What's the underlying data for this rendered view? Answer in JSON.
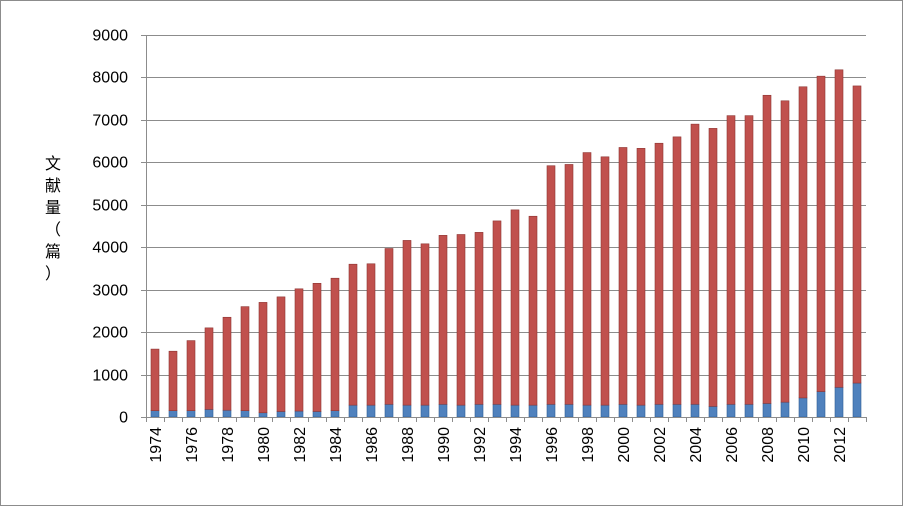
{
  "chart_data": {
    "type": "bar",
    "stacked": true,
    "ylabel": "文献量（篇）",
    "ylim": [
      0,
      9000
    ],
    "yticks": [
      0,
      1000,
      2000,
      3000,
      4000,
      5000,
      6000,
      7000,
      8000,
      9000
    ],
    "grid": true,
    "legend": "none",
    "x": [
      1974,
      1975,
      1976,
      1977,
      1978,
      1979,
      1980,
      1981,
      1982,
      1983,
      1984,
      1985,
      1986,
      1987,
      1988,
      1989,
      1990,
      1991,
      1992,
      1993,
      1994,
      1995,
      1996,
      1997,
      1998,
      1999,
      2000,
      2001,
      2002,
      2003,
      2004,
      2005,
      2006,
      2007,
      2008,
      2009,
      2010,
      2011,
      2012,
      2013
    ],
    "xtick_labels": [
      "1974",
      "1976",
      "1978",
      "1980",
      "1982",
      "1984",
      "1986",
      "1988",
      "1990",
      "1992",
      "1994",
      "1996",
      "1998",
      "2000",
      "2002",
      "2004",
      "2006",
      "2008",
      "2010",
      "2012"
    ],
    "series": [
      {
        "color": "#4f81bd",
        "values": [
          150,
          150,
          150,
          180,
          160,
          150,
          100,
          130,
          140,
          130,
          150,
          280,
          280,
          300,
          280,
          280,
          300,
          280,
          300,
          300,
          280,
          280,
          300,
          300,
          280,
          280,
          300,
          280,
          300,
          300,
          300,
          250,
          300,
          300,
          320,
          350,
          450,
          600,
          700,
          800
        ]
      },
      {
        "color": "#c0504d",
        "values": [
          1450,
          1400,
          1650,
          1920,
          2190,
          2450,
          2600,
          2700,
          2880,
          3020,
          3120,
          3320,
          3330,
          3670,
          3880,
          3800,
          3980,
          4020,
          4050,
          4320,
          4600,
          4450,
          5620,
          5650,
          5950,
          5850,
          6050,
          6050,
          6150,
          6300,
          6600,
          6550,
          6800,
          6800,
          7260,
          7100,
          7330,
          7430,
          7480,
          7000
        ]
      }
    ]
  }
}
